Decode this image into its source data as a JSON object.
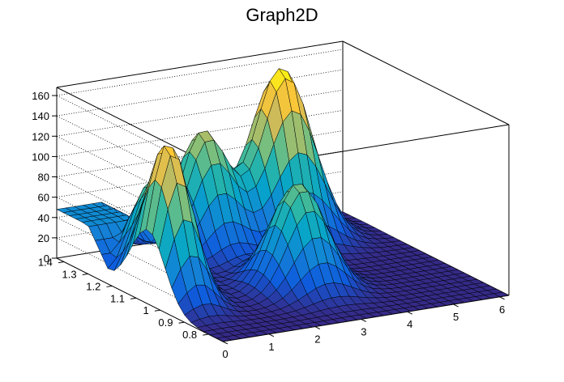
{
  "chart_data": {
    "type": "surface3d",
    "title": "Graph2D",
    "x_ticks": [
      0,
      1,
      2,
      3,
      4,
      5,
      6
    ],
    "y_ticks": [
      0.8,
      0.9,
      1,
      1.1,
      1.2,
      1.3,
      1.4
    ],
    "z_ticks": [
      0,
      20,
      40,
      60,
      80,
      100,
      120,
      140,
      160
    ],
    "xlim": [
      0,
      6.2
    ],
    "ylim": [
      0.74,
      1.43
    ],
    "zlim": [
      0,
      168
    ],
    "grid": true,
    "colormap": "viridis-like",
    "colormap_stops": [
      "#352a87",
      "#0f5cdd",
      "#1481d6",
      "#06a4ca",
      "#2eb7a4",
      "#87bf77",
      "#d1bb59",
      "#fec832",
      "#f9fb0e"
    ],
    "peaks": [
      {
        "x": 0.45,
        "y": 1.05,
        "z": 150
      },
      {
        "x": 0.9,
        "y": 1.2,
        "z": 90
      },
      {
        "x": 2.6,
        "y": 1.32,
        "z": 118
      },
      {
        "x": 4.3,
        "y": 1.32,
        "z": 170
      },
      {
        "x": 3.0,
        "y": 1.0,
        "z": 103
      }
    ],
    "plateau": {
      "x_max": 1.0,
      "y_min": 1.3,
      "z": 48
    }
  }
}
